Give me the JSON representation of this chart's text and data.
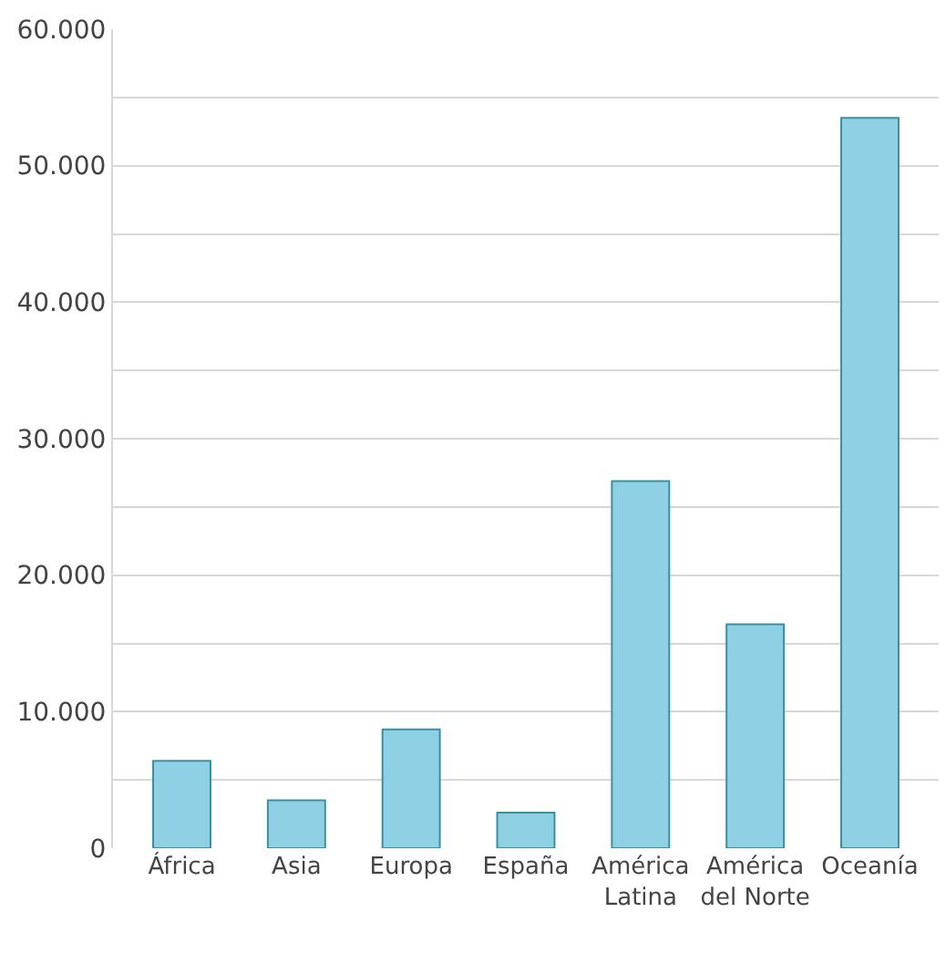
{
  "chart_data": {
    "type": "bar",
    "categories": [
      "África",
      "Asia",
      "Europa",
      "España",
      "América Latina",
      "América del Norte",
      "Oceanía"
    ],
    "values": [
      6400,
      3500,
      8700,
      2600,
      26900,
      16400,
      53500
    ],
    "color": "#8fd0e4",
    "ylim": [
      0,
      60000
    ],
    "yticks": [
      {
        "value": 0,
        "label": "0"
      },
      {
        "value": 5000,
        "label": null
      },
      {
        "value": 10000,
        "label": "10.000"
      },
      {
        "value": 15000,
        "label": null
      },
      {
        "value": 20000,
        "label": "20.000"
      },
      {
        "value": 25000,
        "label": null
      },
      {
        "value": 30000,
        "label": "30.000"
      },
      {
        "value": 35000,
        "label": null
      },
      {
        "value": 40000,
        "label": "40.000"
      },
      {
        "value": 45000,
        "label": null
      },
      {
        "value": 50000,
        "label": "50.000"
      },
      {
        "value": 55000,
        "label": null
      },
      {
        "value": 60000,
        "label": "60.000"
      }
    ],
    "grid": "y"
  }
}
